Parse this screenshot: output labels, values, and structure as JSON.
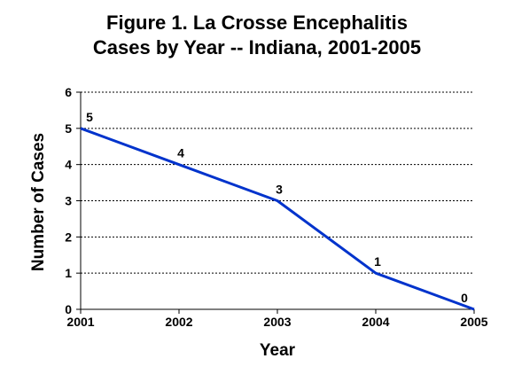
{
  "chart_data": {
    "type": "line",
    "title_line1": "Figure 1.  La Crosse Encephalitis",
    "title_line2": "Cases by Year -- Indiana, 2001-2005",
    "xlabel": "Year",
    "ylabel": "Number of Cases",
    "x": [
      2001,
      2002,
      2003,
      2004,
      2005
    ],
    "series": [
      {
        "values": [
          5,
          4,
          3,
          1,
          0
        ],
        "color": "#0033cc"
      }
    ],
    "ylim": [
      0,
      6
    ],
    "yticks": [
      0,
      1,
      2,
      3,
      4,
      5,
      6
    ],
    "grid": "horizontal-dotted",
    "data_labels": true
  }
}
